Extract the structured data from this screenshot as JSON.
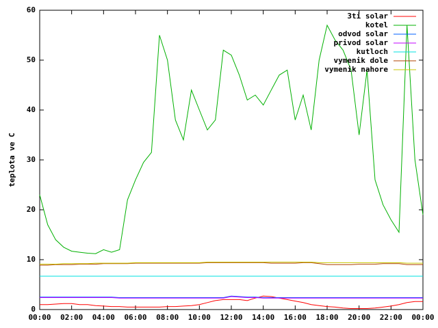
{
  "chart_data": {
    "type": "line",
    "y_label": "teplota ve C",
    "x": [
      0,
      0.5,
      1,
      1.5,
      2,
      2.5,
      3,
      3.5,
      4,
      4.5,
      5,
      5.5,
      6,
      6.5,
      7,
      7.5,
      8,
      8.5,
      9,
      9.5,
      10,
      10.5,
      11,
      11.5,
      12,
      12.5,
      13,
      13.5,
      14,
      14.5,
      15,
      15.5,
      16,
      16.5,
      17,
      17.5,
      18,
      18.5,
      19,
      19.5,
      20,
      20.5,
      21,
      21.5,
      22,
      22.5,
      23,
      23.5,
      24
    ],
    "xlim": [
      0,
      24
    ],
    "xticks": [
      {
        "value": 0,
        "label": "00:00"
      },
      {
        "value": 2,
        "label": "02:00"
      },
      {
        "value": 4,
        "label": "04:00"
      },
      {
        "value": 6,
        "label": "06:00"
      },
      {
        "value": 8,
        "label": "08:00"
      },
      {
        "value": 10,
        "label": "10:00"
      },
      {
        "value": 12,
        "label": "12:00"
      },
      {
        "value": 14,
        "label": "14:00"
      },
      {
        "value": 16,
        "label": "16:00"
      },
      {
        "value": 18,
        "label": "18:00"
      },
      {
        "value": 20,
        "label": "20:00"
      },
      {
        "value": 22,
        "label": "22:00"
      },
      {
        "value": 24,
        "label": "00:00"
      }
    ],
    "ylim": [
      0,
      60
    ],
    "yticks": [
      0,
      10,
      20,
      30,
      40,
      50,
      60
    ],
    "legend": "top-right",
    "series": [
      {
        "name": "3ti solar",
        "color": "#ff0000",
        "values": [
          1,
          1,
          1.1,
          1.2,
          1.2,
          1,
          1,
          0.8,
          0.7,
          0.6,
          0.6,
          0.5,
          0.5,
          0.5,
          0.5,
          0.5,
          0.6,
          0.6,
          0.7,
          0.8,
          1,
          1.4,
          1.8,
          2,
          2,
          2,
          1.8,
          2.3,
          2.7,
          2.6,
          2.3,
          2,
          1.7,
          1.4,
          1,
          0.8,
          0.6,
          0.5,
          0.3,
          0.2,
          0.2,
          0.2,
          0.3,
          0.5,
          0.7,
          1,
          1.4,
          1.6,
          1.6
        ]
      },
      {
        "name": "kotel",
        "color": "#00b000",
        "values": [
          23,
          17,
          14,
          12.5,
          11.7,
          11.5,
          11.3,
          11.2,
          12,
          11.5,
          12,
          22,
          26,
          29.5,
          31.5,
          55,
          50,
          38,
          34,
          44,
          40,
          36,
          38,
          52,
          51,
          47,
          42,
          43,
          41,
          44,
          47,
          48,
          38,
          43,
          36,
          50,
          57,
          54,
          52,
          48,
          35,
          48,
          26,
          21,
          18,
          15.5,
          57,
          30,
          19
        ]
      },
      {
        "name": "odvod solar",
        "color": "#0060ff",
        "values": [
          2.5,
          2.5,
          2.5,
          2.5,
          2.5,
          2.5,
          2.5,
          2.5,
          2.5,
          2.5,
          2.4,
          2.4,
          2.4,
          2.4,
          2.4,
          2.4,
          2.4,
          2.4,
          2.4,
          2.4,
          2.4,
          2.4,
          2.4,
          2.4,
          2.7,
          2.6,
          2.5,
          2.5,
          2.4,
          2.4,
          2.4,
          2.4,
          2.4,
          2.4,
          2.4,
          2.4,
          2.4,
          2.4,
          2.4,
          2.4,
          2.4,
          2.4,
          2.4,
          2.4,
          2.4,
          2.4,
          2.4,
          2.4,
          2.4
        ]
      },
      {
        "name": "privod solar",
        "color": "#c000ff",
        "values": [
          2.4,
          2.4,
          2.4,
          2.4,
          2.4,
          2.4,
          2.4,
          2.4,
          2.4,
          2.4,
          2.3,
          2.3,
          2.3,
          2.3,
          2.3,
          2.3,
          2.3,
          2.3,
          2.3,
          2.3,
          2.3,
          2.3,
          2.3,
          2.3,
          2.6,
          2.5,
          2.4,
          2.4,
          2.3,
          2.3,
          2.3,
          2.3,
          2.3,
          2.3,
          2.3,
          2.3,
          2.3,
          2.3,
          2.3,
          2.3,
          2.3,
          2.3,
          2.3,
          2.3,
          2.3,
          2.3,
          2.3,
          2.3,
          2.3
        ]
      },
      {
        "name": "kutloch",
        "color": "#00e0e0",
        "values": [
          6.7,
          6.7,
          6.7,
          6.7,
          6.7,
          6.7,
          6.7,
          6.7,
          6.7,
          6.7,
          6.7,
          6.7,
          6.7,
          6.7,
          6.7,
          6.7,
          6.7,
          6.7,
          6.7,
          6.7,
          6.7,
          6.7,
          6.7,
          6.7,
          6.7,
          6.7,
          6.7,
          6.7,
          6.7,
          6.7,
          6.7,
          6.7,
          6.7,
          6.7,
          6.7,
          6.7,
          6.7,
          6.7,
          6.7,
          6.7,
          6.7,
          6.7,
          6.7,
          6.7,
          6.7,
          6.7,
          6.7,
          6.7,
          6.7
        ]
      },
      {
        "name": "vymenik dole",
        "color": "#b04000",
        "values": [
          8.9,
          8.9,
          9,
          9,
          9,
          9.1,
          9.1,
          9.1,
          9.2,
          9.2,
          9.2,
          9.2,
          9.3,
          9.3,
          9.3,
          9.3,
          9.3,
          9.3,
          9.3,
          9.3,
          9.3,
          9.4,
          9.4,
          9.4,
          9.4,
          9.4,
          9.4,
          9.4,
          9.4,
          9.3,
          9.3,
          9.3,
          9.3,
          9.4,
          9.4,
          9.2,
          9,
          9,
          9,
          9,
          9.1,
          9.1,
          9.1,
          9.2,
          9.2,
          9.2,
          9,
          9,
          9
        ]
      },
      {
        "name": "vymenik nahore",
        "color": "#c8c800",
        "values": [
          9.1,
          9.1,
          9.1,
          9.2,
          9.2,
          9.2,
          9.2,
          9.3,
          9.3,
          9.3,
          9.3,
          9.3,
          9.4,
          9.4,
          9.4,
          9.4,
          9.4,
          9.4,
          9.4,
          9.4,
          9.4,
          9.5,
          9.5,
          9.5,
          9.5,
          9.5,
          9.5,
          9.5,
          9.5,
          9.5,
          9.5,
          9.5,
          9.5,
          9.5,
          9.5,
          9.4,
          9.4,
          9.4,
          9.4,
          9.4,
          9.4,
          9.4,
          9.4,
          9.4,
          9.4,
          9.4,
          9.3,
          9.3,
          9.3
        ]
      }
    ]
  }
}
